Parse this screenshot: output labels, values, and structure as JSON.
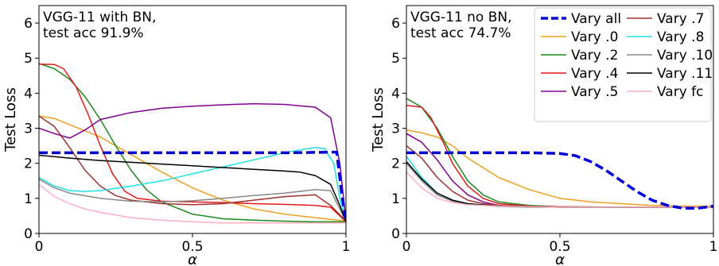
{
  "chart_data": [
    {
      "type": "line",
      "annotation": [
        "VGG-11 with BN,",
        "test acc 91.9%"
      ],
      "xlabel": "α",
      "ylabel": "Test Loss",
      "xlim": [
        0,
        1
      ],
      "ylim": [
        0,
        6.5
      ],
      "xticks": [
        "0",
        "0.5",
        "1"
      ],
      "yticks": [
        "0",
        "1",
        "2",
        "3",
        "4",
        "5",
        "6"
      ],
      "grid": false,
      "legend": false,
      "series": [
        {
          "name": "Vary all",
          "color": "#0000dd",
          "dashed": true,
          "x": [
            0,
            0.2,
            0.5,
            0.8,
            0.97,
            0.985,
            1.0
          ],
          "y": [
            2.3,
            2.3,
            2.3,
            2.3,
            2.32,
            1.2,
            0.35
          ]
        },
        {
          "name": "Vary .0",
          "color": "#f0a020",
          "x": [
            0,
            0.05,
            0.1,
            0.2,
            0.3,
            0.4,
            0.5,
            0.6,
            0.7,
            0.8,
            0.9,
            1.0
          ],
          "y": [
            3.35,
            3.28,
            3.1,
            2.75,
            2.25,
            1.75,
            1.3,
            0.95,
            0.7,
            0.55,
            0.45,
            0.35
          ]
        },
        {
          "name": "Vary .2",
          "color": "#1a8a1a",
          "x": [
            0,
            0.05,
            0.1,
            0.15,
            0.2,
            0.25,
            0.3,
            0.35,
            0.4,
            0.5,
            0.6,
            0.7,
            0.8,
            0.9,
            1.0
          ],
          "y": [
            4.85,
            4.7,
            4.4,
            3.9,
            3.25,
            2.5,
            1.8,
            1.25,
            0.9,
            0.55,
            0.42,
            0.38,
            0.35,
            0.33,
            0.33
          ]
        },
        {
          "name": "Vary .4",
          "color": "#e01a1a",
          "x": [
            0,
            0.05,
            0.08,
            0.12,
            0.16,
            0.2,
            0.24,
            0.28,
            0.32,
            0.4,
            0.5,
            0.6,
            0.7,
            0.8,
            0.9,
            0.95,
            0.98,
            1.0
          ],
          "y": [
            4.83,
            4.82,
            4.7,
            4.2,
            3.4,
            2.5,
            1.7,
            1.2,
            1.0,
            0.92,
            0.9,
            0.88,
            0.85,
            0.83,
            0.8,
            0.75,
            0.5,
            0.33
          ]
        },
        {
          "name": "Vary .5",
          "color": "#800090",
          "x": [
            0,
            0.05,
            0.1,
            0.15,
            0.2,
            0.3,
            0.4,
            0.5,
            0.6,
            0.7,
            0.8,
            0.9,
            0.95,
            0.98,
            1.0
          ],
          "y": [
            3.0,
            2.85,
            2.72,
            2.95,
            3.25,
            3.45,
            3.57,
            3.63,
            3.67,
            3.7,
            3.68,
            3.6,
            3.3,
            2.0,
            0.35
          ]
        },
        {
          "name": "Vary .7",
          "color": "#a03030",
          "x": [
            0,
            0.05,
            0.1,
            0.15,
            0.2,
            0.25,
            0.3,
            0.35,
            0.4,
            0.5,
            0.6,
            0.7,
            0.8,
            0.9,
            0.95,
            1.0
          ],
          "y": [
            3.35,
            3.05,
            2.45,
            1.8,
            1.35,
            1.08,
            0.95,
            0.9,
            0.85,
            0.82,
            0.85,
            0.95,
            1.05,
            1.1,
            0.8,
            0.35
          ]
        },
        {
          "name": "Vary .8",
          "color": "#20e0e0",
          "x": [
            0,
            0.05,
            0.1,
            0.15,
            0.2,
            0.3,
            0.4,
            0.5,
            0.6,
            0.7,
            0.8,
            0.85,
            0.9,
            0.93,
            0.96,
            0.98,
            1.0
          ],
          "y": [
            1.6,
            1.35,
            1.22,
            1.2,
            1.22,
            1.35,
            1.5,
            1.7,
            1.9,
            2.1,
            2.3,
            2.38,
            2.45,
            2.42,
            2.0,
            1.0,
            0.35
          ]
        },
        {
          "name": "Vary .10",
          "color": "#888888",
          "x": [
            0,
            0.05,
            0.1,
            0.2,
            0.3,
            0.4,
            0.5,
            0.6,
            0.7,
            0.8,
            0.9,
            0.95,
            0.98,
            1.0
          ],
          "y": [
            1.55,
            1.3,
            1.15,
            1.0,
            0.92,
            0.9,
            0.93,
            1.0,
            1.08,
            1.15,
            1.25,
            1.22,
            0.7,
            0.33
          ]
        },
        {
          "name": "Vary .11",
          "color": "#000000",
          "x": [
            0,
            0.1,
            0.2,
            0.3,
            0.4,
            0.5,
            0.6,
            0.7,
            0.8,
            0.85,
            0.9,
            0.95,
            0.98,
            1.0
          ],
          "y": [
            2.23,
            2.15,
            2.08,
            2.03,
            1.98,
            1.93,
            1.88,
            1.83,
            1.78,
            1.75,
            1.65,
            1.4,
            0.8,
            0.33
          ]
        },
        {
          "name": "Vary fc",
          "color": "#ffb0c0",
          "x": [
            0,
            0.05,
            0.1,
            0.15,
            0.2,
            0.3,
            0.4,
            0.5,
            0.6,
            0.7,
            0.8,
            0.9,
            0.95,
            1.0
          ],
          "y": [
            1.4,
            1.05,
            0.85,
            0.7,
            0.6,
            0.45,
            0.38,
            0.33,
            0.3,
            0.3,
            0.3,
            0.3,
            0.3,
            0.3
          ]
        }
      ]
    },
    {
      "type": "line",
      "annotation": [
        "VGG-11 no BN,",
        "test acc 74.7%"
      ],
      "xlabel": "α",
      "ylabel": "Test Loss",
      "xlim": [
        0,
        1
      ],
      "ylim": [
        0,
        6.5
      ],
      "xticks": [
        "0",
        "0.5",
        "1"
      ],
      "yticks": [
        "0",
        "1",
        "2",
        "3",
        "4",
        "5",
        "6"
      ],
      "grid": false,
      "legend": "top-right",
      "legend_columns": 2,
      "series": [
        {
          "name": "Vary all",
          "color": "#0000dd",
          "dashed": true,
          "x": [
            0,
            0.2,
            0.4,
            0.5,
            0.55,
            0.6,
            0.65,
            0.7,
            0.75,
            0.8,
            0.85,
            0.9,
            0.95,
            1.0
          ],
          "y": [
            2.3,
            2.3,
            2.3,
            2.28,
            2.22,
            2.05,
            1.8,
            1.5,
            1.2,
            0.95,
            0.8,
            0.72,
            0.72,
            0.78
          ]
        },
        {
          "name": "Vary .0",
          "color": "#f0a020",
          "x": [
            0,
            0.05,
            0.1,
            0.15,
            0.2,
            0.3,
            0.4,
            0.5,
            0.6,
            0.7,
            0.8,
            0.9,
            1.0
          ],
          "y": [
            2.95,
            2.87,
            2.75,
            2.5,
            2.15,
            1.6,
            1.25,
            1.0,
            0.9,
            0.85,
            0.8,
            0.78,
            0.78
          ]
        },
        {
          "name": "Vary .2",
          "color": "#1a8a1a",
          "x": [
            0,
            0.05,
            0.1,
            0.15,
            0.2,
            0.25,
            0.3,
            0.4,
            0.5,
            0.7,
            1.0
          ],
          "y": [
            3.85,
            3.6,
            3.0,
            2.2,
            1.5,
            1.1,
            0.9,
            0.8,
            0.76,
            0.75,
            0.75
          ]
        },
        {
          "name": "Vary .4",
          "color": "#e01a1a",
          "x": [
            0,
            0.05,
            0.08,
            0.12,
            0.15,
            0.2,
            0.25,
            0.3,
            0.4,
            0.5,
            0.7,
            1.0
          ],
          "y": [
            3.65,
            3.6,
            3.3,
            2.6,
            2.0,
            1.35,
            1.0,
            0.85,
            0.78,
            0.76,
            0.75,
            0.75
          ]
        },
        {
          "name": "Vary .5",
          "color": "#800090",
          "x": [
            0,
            0.05,
            0.1,
            0.15,
            0.2,
            0.25,
            0.3,
            0.4,
            0.5,
            0.7,
            1.0
          ],
          "y": [
            2.85,
            2.6,
            2.1,
            1.5,
            1.1,
            0.9,
            0.8,
            0.76,
            0.75,
            0.75,
            0.75
          ]
        },
        {
          "name": "Vary .7",
          "color": "#a03030",
          "x": [
            0,
            0.05,
            0.1,
            0.15,
            0.2,
            0.25,
            0.3,
            0.4,
            0.5,
            0.7,
            1.0
          ],
          "y": [
            2.5,
            2.15,
            1.6,
            1.2,
            0.95,
            0.85,
            0.8,
            0.76,
            0.75,
            0.75,
            0.75
          ]
        },
        {
          "name": "Vary .8",
          "color": "#20e0e0",
          "x": [
            0,
            0.05,
            0.1,
            0.15,
            0.2,
            0.3,
            0.4,
            0.5,
            0.7,
            1.0
          ],
          "y": [
            2.2,
            1.6,
            1.15,
            0.95,
            0.85,
            0.78,
            0.76,
            0.75,
            0.75,
            0.75
          ]
        },
        {
          "name": "Vary .10",
          "color": "#888888",
          "x": [
            0,
            0.05,
            0.1,
            0.15,
            0.2,
            0.3,
            0.4,
            0.5,
            0.7,
            1.0
          ],
          "y": [
            2.0,
            1.5,
            1.1,
            0.92,
            0.83,
            0.77,
            0.75,
            0.75,
            0.75,
            0.75
          ]
        },
        {
          "name": "Vary .11",
          "color": "#000000",
          "x": [
            0,
            0.05,
            0.1,
            0.15,
            0.2,
            0.3,
            0.4,
            0.5,
            0.7,
            1.0
          ],
          "y": [
            2.05,
            1.55,
            1.15,
            0.95,
            0.85,
            0.78,
            0.76,
            0.75,
            0.75,
            0.75
          ]
        },
        {
          "name": "Vary fc",
          "color": "#ffb0c0",
          "x": [
            0,
            0.05,
            0.1,
            0.15,
            0.2,
            0.3,
            0.4,
            0.5,
            0.7,
            1.0
          ],
          "y": [
            1.75,
            1.3,
            1.0,
            0.88,
            0.82,
            0.78,
            0.76,
            0.75,
            0.75,
            0.75
          ]
        }
      ]
    }
  ]
}
